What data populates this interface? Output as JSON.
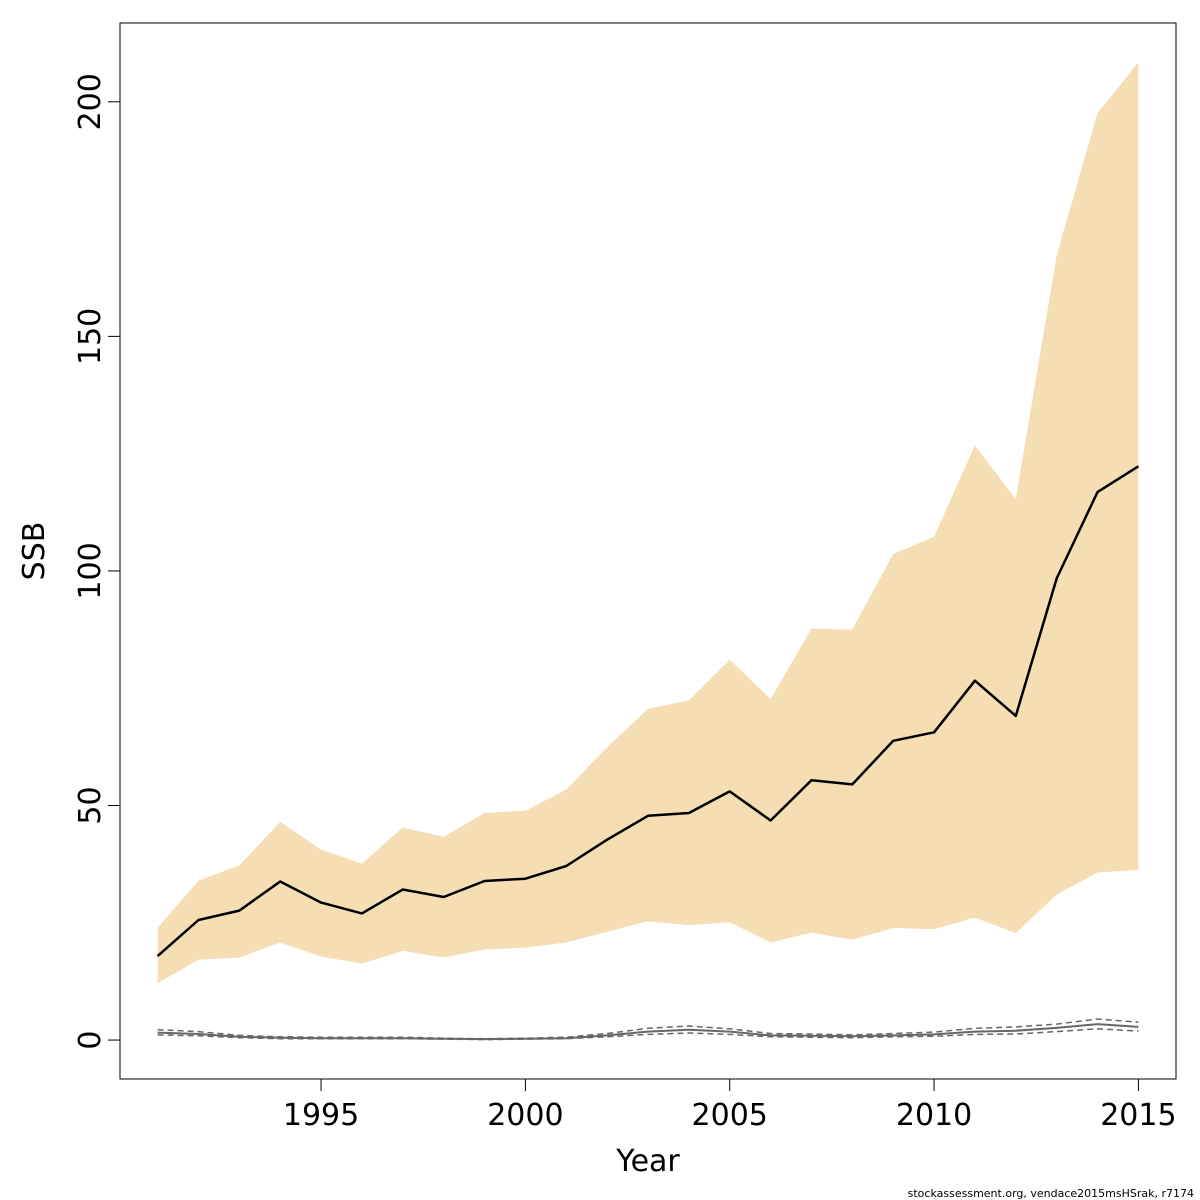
{
  "chart_data": {
    "type": "line",
    "xlabel": "Year",
    "ylabel": "SSB",
    "xlim": [
      1990.08,
      2015.92
    ],
    "ylim": [
      -8.3,
      216.8
    ],
    "x_ticks": [
      1995,
      2000,
      2005,
      2010,
      2015
    ],
    "y_ticks": [
      0,
      50,
      100,
      150,
      200
    ],
    "grid": false,
    "legend": "none",
    "colors": {
      "band": "#f5deb3",
      "estimate": "#000000",
      "reference": "#666666"
    },
    "x": [
      1991,
      1992,
      1993,
      1994,
      1995,
      1996,
      1997,
      1998,
      1999,
      2000,
      2001,
      2002,
      2003,
      2004,
      2005,
      2006,
      2007,
      2008,
      2009,
      2010,
      2011,
      2012,
      2013,
      2014,
      2015
    ],
    "series": [
      {
        "role": "estimate",
        "values": [
          17.9,
          25.6,
          27.6,
          33.8,
          29.3,
          27.0,
          32.1,
          30.5,
          33.9,
          34.4,
          37.1,
          42.7,
          47.8,
          48.4,
          53.0,
          46.8,
          55.4,
          54.5,
          63.8,
          65.6,
          76.6,
          69.1,
          98.4,
          116.8,
          122.3
        ]
      },
      {
        "role": "upper",
        "values": [
          23.9,
          34.0,
          37.2,
          46.5,
          40.6,
          37.6,
          45.3,
          43.3,
          48.4,
          48.9,
          53.4,
          62.4,
          70.6,
          72.4,
          81.1,
          72.7,
          87.7,
          87.5,
          103.6,
          107.3,
          126.8,
          115.3,
          167.3,
          197.6,
          208.4
        ]
      },
      {
        "role": "lower",
        "values": [
          12.1,
          17.1,
          17.6,
          20.8,
          17.8,
          16.3,
          19.0,
          17.6,
          19.3,
          19.7,
          20.8,
          23.1,
          25.3,
          24.5,
          25.1,
          20.8,
          22.9,
          21.4,
          23.9,
          23.6,
          26.1,
          22.8,
          31.0,
          35.7,
          36.3
        ]
      },
      {
        "role": "reference",
        "values": [
          1.6,
          1.3,
          0.7,
          0.5,
          0.4,
          0.4,
          0.4,
          0.3,
          0.2,
          0.3,
          0.4,
          1.0,
          1.8,
          2.2,
          1.8,
          1.0,
          0.9,
          0.8,
          1.0,
          1.2,
          1.8,
          2.0,
          2.6,
          3.4,
          2.8
        ]
      },
      {
        "role": "reference-upper",
        "values": [
          2.2,
          1.8,
          1.0,
          0.7,
          0.6,
          0.6,
          0.6,
          0.4,
          0.3,
          0.4,
          0.6,
          1.4,
          2.5,
          3.0,
          2.4,
          1.4,
          1.3,
          1.1,
          1.4,
          1.7,
          2.5,
          2.8,
          3.4,
          4.5,
          3.8
        ]
      },
      {
        "role": "reference-lower",
        "values": [
          1.1,
          0.9,
          0.5,
          0.3,
          0.3,
          0.3,
          0.3,
          0.2,
          0.1,
          0.2,
          0.3,
          0.7,
          1.2,
          1.5,
          1.2,
          0.7,
          0.6,
          0.5,
          0.7,
          0.8,
          1.2,
          1.3,
          1.8,
          2.4,
          1.9
        ]
      }
    ]
  },
  "footer": {
    "credit": "stockassessment.org, vendace2015msHSrak, r7174"
  }
}
